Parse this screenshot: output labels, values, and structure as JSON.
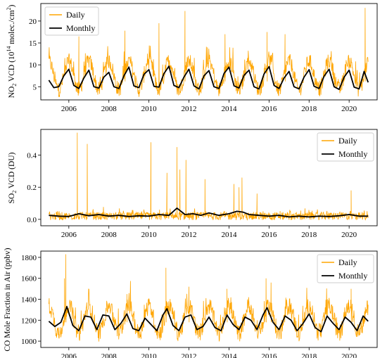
{
  "colors": {
    "daily": "#ffa500",
    "monthly": "#000000"
  },
  "chart_data": [
    {
      "type": "line",
      "title": "",
      "xlabel": "",
      "ylabel": "NO2 VCD (10^14 molec./cm^2)",
      "ylabel_parts": [
        "NO",
        "2",
        " VCD (10",
        "14",
        " molec./cm",
        "2",
        ")"
      ],
      "xlim": [
        2004.6,
        2021.4
      ],
      "ylim": [
        2.0,
        24.0
      ],
      "yticks": [
        5,
        10,
        15,
        20
      ],
      "xticks": [
        2006,
        2008,
        2010,
        2012,
        2014,
        2016,
        2018,
        2020
      ],
      "grid": false,
      "legend_position": "top-left",
      "series": [
        {
          "name": "Daily",
          "color": "#ffa500",
          "start": 2005.0,
          "end": 2020.95,
          "mean_level": 6.2,
          "winter_peak": 10.5,
          "summer_low": 4.0,
          "noise": 1.6,
          "spikes": [
            [
              2006.5,
              16.5
            ],
            [
              2008.8,
              17.8
            ],
            [
              2010.5,
              19.5
            ],
            [
              2011.8,
              22.3
            ],
            [
              2013.8,
              17.0
            ],
            [
              2015.9,
              17.5
            ],
            [
              2016.8,
              17.0
            ],
            [
              2020.8,
              23.0
            ]
          ]
        },
        {
          "name": "Monthly",
          "color": "#000000",
          "x": [
            2005.0,
            2005.25,
            2005.5,
            2005.75,
            2006.0,
            2006.25,
            2006.5,
            2006.75,
            2007.0,
            2007.25,
            2007.5,
            2007.75,
            2008.0,
            2008.25,
            2008.5,
            2008.75,
            2009.0,
            2009.25,
            2009.5,
            2009.75,
            2010.0,
            2010.25,
            2010.5,
            2010.75,
            2011.0,
            2011.25,
            2011.5,
            2011.75,
            2012.0,
            2012.25,
            2012.5,
            2012.75,
            2013.0,
            2013.25,
            2013.5,
            2013.75,
            2014.0,
            2014.25,
            2014.5,
            2014.75,
            2015.0,
            2015.25,
            2015.5,
            2015.75,
            2016.0,
            2016.25,
            2016.5,
            2016.75,
            2017.0,
            2017.25,
            2017.5,
            2017.75,
            2018.0,
            2018.25,
            2018.5,
            2018.75,
            2019.0,
            2019.25,
            2019.5,
            2019.75,
            2020.0,
            2020.25,
            2020.5,
            2020.75,
            2020.95
          ],
          "y": [
            6.5,
            4.8,
            5.0,
            7.5,
            9.0,
            5.3,
            4.6,
            7.0,
            8.8,
            5.0,
            4.7,
            7.2,
            8.3,
            5.0,
            4.6,
            7.5,
            9.5,
            5.2,
            4.8,
            7.8,
            8.9,
            5.1,
            4.9,
            8.0,
            9.7,
            5.3,
            4.8,
            7.2,
            9.0,
            5.2,
            4.5,
            7.5,
            8.7,
            5.0,
            4.6,
            8.0,
            9.5,
            5.2,
            4.7,
            7.6,
            8.8,
            5.0,
            4.5,
            7.9,
            9.6,
            5.3,
            4.6,
            7.0,
            8.5,
            5.0,
            4.5,
            7.2,
            8.9,
            5.1,
            4.6,
            7.4,
            9.0,
            5.0,
            4.4,
            7.2,
            8.8,
            4.9,
            4.5,
            8.5,
            6.0
          ]
        }
      ]
    },
    {
      "type": "line",
      "title": "",
      "xlabel": "",
      "ylabel": "SO2 VCD (DU)",
      "ylabel_parts": [
        "SO",
        "2",
        " VCD (DU)"
      ],
      "xlim": [
        2004.6,
        2021.4
      ],
      "ylim": [
        -0.04,
        0.56
      ],
      "yticks": [
        0.0,
        0.2,
        0.4
      ],
      "ytick_labels": [
        "0.0",
        "0.2",
        "0.4"
      ],
      "xticks": [
        2006,
        2008,
        2010,
        2012,
        2014,
        2016,
        2018,
        2020
      ],
      "grid": false,
      "legend_position": "top-right",
      "series": [
        {
          "name": "Daily",
          "color": "#ffa500",
          "start": 2005.0,
          "end": 2020.95,
          "mean_level": 0.02,
          "noise": 0.025,
          "spikes": [
            [
              2006.42,
              0.54
            ],
            [
              2006.92,
              0.47
            ],
            [
              2010.1,
              0.48
            ],
            [
              2010.9,
              0.29
            ],
            [
              2011.4,
              0.45
            ],
            [
              2011.85,
              0.37
            ],
            [
              2011.55,
              0.31
            ],
            [
              2012.8,
              0.25
            ],
            [
              2014.25,
              0.22
            ],
            [
              2014.65,
              0.26
            ],
            [
              2014.5,
              0.2
            ],
            [
              2015.4,
              0.16
            ],
            [
              2020.1,
              0.18
            ]
          ]
        },
        {
          "name": "Monthly",
          "color": "#000000",
          "x": [
            2005.0,
            2005.5,
            2006.0,
            2006.5,
            2007.0,
            2007.5,
            2008.0,
            2008.5,
            2009.0,
            2009.5,
            2010.0,
            2010.5,
            2011.0,
            2011.4,
            2011.8,
            2012.2,
            2012.6,
            2013.0,
            2013.5,
            2014.0,
            2014.4,
            2014.7,
            2015.0,
            2015.5,
            2016.0,
            2016.5,
            2017.0,
            2017.5,
            2018.0,
            2018.5,
            2019.0,
            2019.5,
            2020.0,
            2020.5,
            2020.95
          ],
          "y": [
            0.025,
            0.02,
            0.018,
            0.035,
            0.022,
            0.03,
            0.02,
            0.025,
            0.018,
            0.022,
            0.02,
            0.03,
            0.025,
            0.07,
            0.03,
            0.035,
            0.025,
            0.04,
            0.025,
            0.035,
            0.05,
            0.045,
            0.03,
            0.025,
            0.02,
            0.025,
            0.015,
            0.02,
            0.015,
            0.02,
            0.018,
            0.022,
            0.03,
            0.02,
            0.02
          ]
        }
      ]
    },
    {
      "type": "line",
      "title": "",
      "xlabel": "",
      "ylabel": "CO Mole Fraction in Air (ppbv)",
      "xlim": [
        2004.6,
        2021.4
      ],
      "ylim": [
        940,
        1860
      ],
      "yticks": [
        1000,
        1200,
        1400,
        1600,
        1800
      ],
      "xticks": [
        2006,
        2008,
        2010,
        2012,
        2014,
        2016,
        2018,
        2020
      ],
      "grid": false,
      "legend_position": "top-right",
      "series": [
        {
          "name": "Daily",
          "color": "#ffa500",
          "start": 2005.0,
          "end": 2020.95,
          "mean_level": 1180,
          "winter_peak": 1320,
          "summer_low": 1060,
          "noise": 75,
          "spikes": [
            [
              2005.85,
              1830
            ],
            [
              2005.78,
              1600
            ],
            [
              2010.85,
              1700
            ],
            [
              2015.85,
              1600
            ],
            [
              2016.1,
              1560
            ],
            [
              2013.9,
              1500
            ],
            [
              2008.9,
              1450
            ],
            [
              2020.1,
              1500
            ],
            [
              2012.0,
              1520
            ]
          ]
        },
        {
          "name": "Monthly",
          "color": "#000000",
          "x": [
            2005.0,
            2005.3,
            2005.6,
            2005.9,
            2006.2,
            2006.5,
            2006.8,
            2007.1,
            2007.4,
            2007.7,
            2008.0,
            2008.3,
            2008.6,
            2008.9,
            2009.2,
            2009.5,
            2009.8,
            2010.1,
            2010.4,
            2010.7,
            2010.9,
            2011.2,
            2011.5,
            2011.8,
            2012.1,
            2012.4,
            2012.7,
            2013.0,
            2013.3,
            2013.6,
            2013.9,
            2014.2,
            2014.5,
            2014.8,
            2015.1,
            2015.4,
            2015.7,
            2015.9,
            2016.2,
            2016.5,
            2016.8,
            2017.1,
            2017.4,
            2017.7,
            2018.0,
            2018.3,
            2018.6,
            2018.9,
            2019.2,
            2019.5,
            2019.8,
            2020.1,
            2020.4,
            2020.7,
            2020.95
          ],
          "y": [
            1190,
            1140,
            1180,
            1330,
            1150,
            1100,
            1240,
            1230,
            1110,
            1250,
            1240,
            1110,
            1170,
            1260,
            1120,
            1100,
            1220,
            1160,
            1100,
            1250,
            1310,
            1150,
            1100,
            1230,
            1250,
            1110,
            1140,
            1230,
            1130,
            1100,
            1250,
            1160,
            1110,
            1230,
            1200,
            1110,
            1250,
            1320,
            1180,
            1110,
            1240,
            1200,
            1100,
            1170,
            1260,
            1130,
            1090,
            1240,
            1170,
            1110,
            1230,
            1180,
            1100,
            1240,
            1190
          ]
        }
      ]
    }
  ]
}
